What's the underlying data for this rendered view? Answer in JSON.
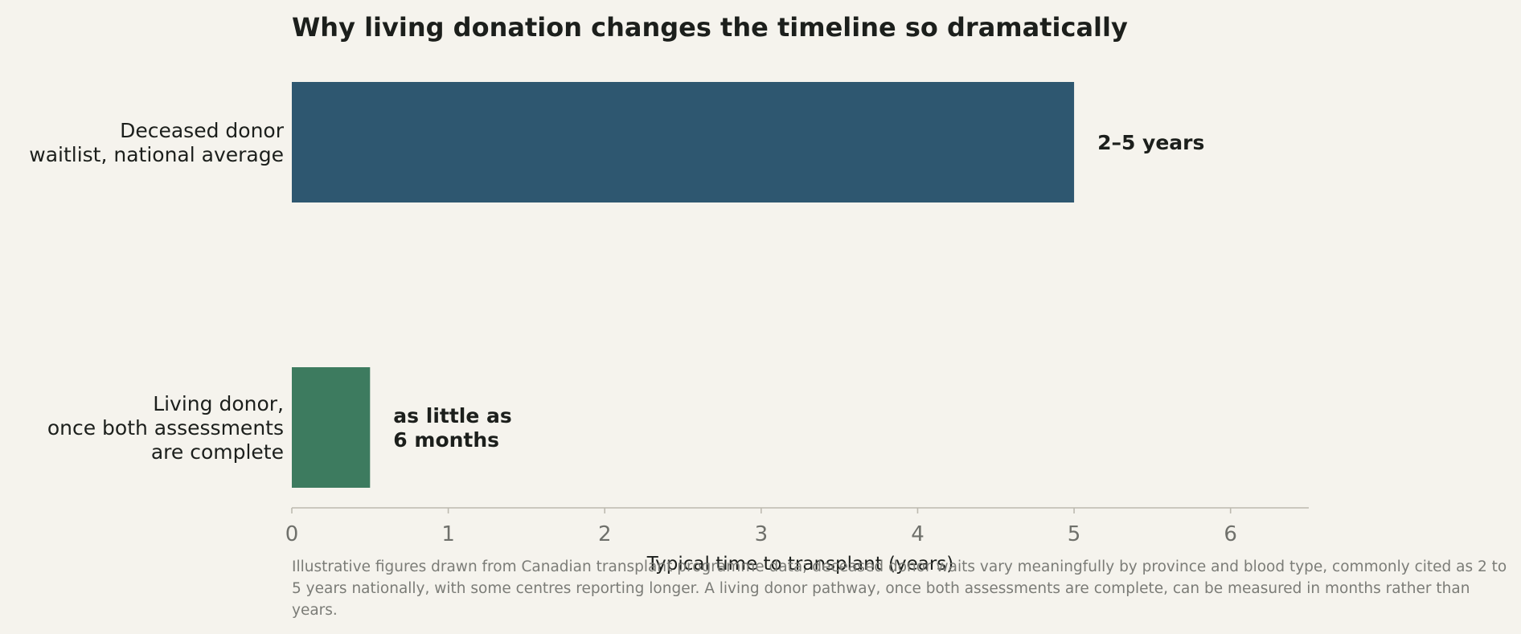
{
  "chart_data": {
    "type": "bar",
    "orientation": "horizontal",
    "title": "Why living donation changes the timeline so dramatically",
    "categories": [
      "Deceased donor\nwaitlist, national average",
      "Living donor,\nonce both assessments\nare complete"
    ],
    "values": [
      5,
      0.5
    ],
    "value_labels": [
      "2–5 years",
      "as little as\n6 months"
    ],
    "colors": [
      "#2e5770",
      "#3d7b5f"
    ],
    "xlabel": "Typical time to transplant (years)",
    "ylabel": "",
    "xlim": [
      0,
      6.5
    ],
    "xticks": [
      "0",
      "1",
      "2",
      "3",
      "4",
      "5",
      "6"
    ],
    "grid": false,
    "legend": "none"
  },
  "footnote": "Illustrative figures drawn from Canadian transplant programme data; deceased donor waits vary meaningfully by province and blood type, commonly cited as 2 to 5 years nationally, with some centres reporting longer. A living donor pathway, once both assessments are complete, can be measured in months rather than years."
}
